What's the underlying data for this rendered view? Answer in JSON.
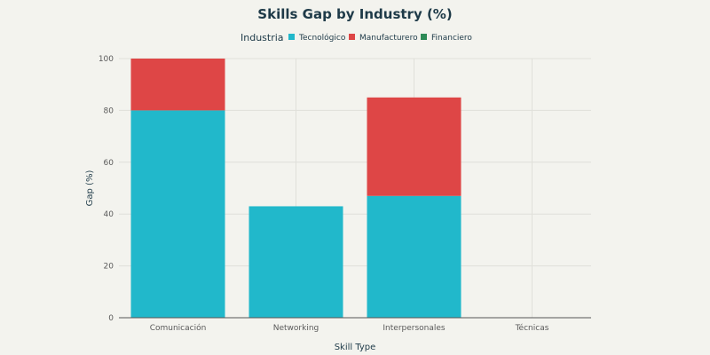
{
  "chart_data": {
    "type": "bar",
    "stacked": true,
    "title": "Skills Gap by Industry (%)",
    "xlabel": "Skill Type",
    "ylabel": "Gap (%)",
    "ylim": [
      0,
      100
    ],
    "yticks": [
      0,
      20,
      40,
      60,
      80,
      100
    ],
    "categories": [
      "Comunicación",
      "Networking",
      "Interpersonales",
      "Técnicas"
    ],
    "legend_title": "Industria",
    "legend_position": "top-center",
    "grid": true,
    "series": [
      {
        "name": "Tecnológico",
        "color": "#21b8cb",
        "values": [
          80,
          43,
          47,
          0
        ]
      },
      {
        "name": "Manufacturero",
        "color": "#de4646",
        "values": [
          20,
          0,
          38,
          0
        ]
      },
      {
        "name": "Financiero",
        "color": "#2e8b57",
        "values": [
          0,
          0,
          0,
          0
        ]
      }
    ]
  }
}
